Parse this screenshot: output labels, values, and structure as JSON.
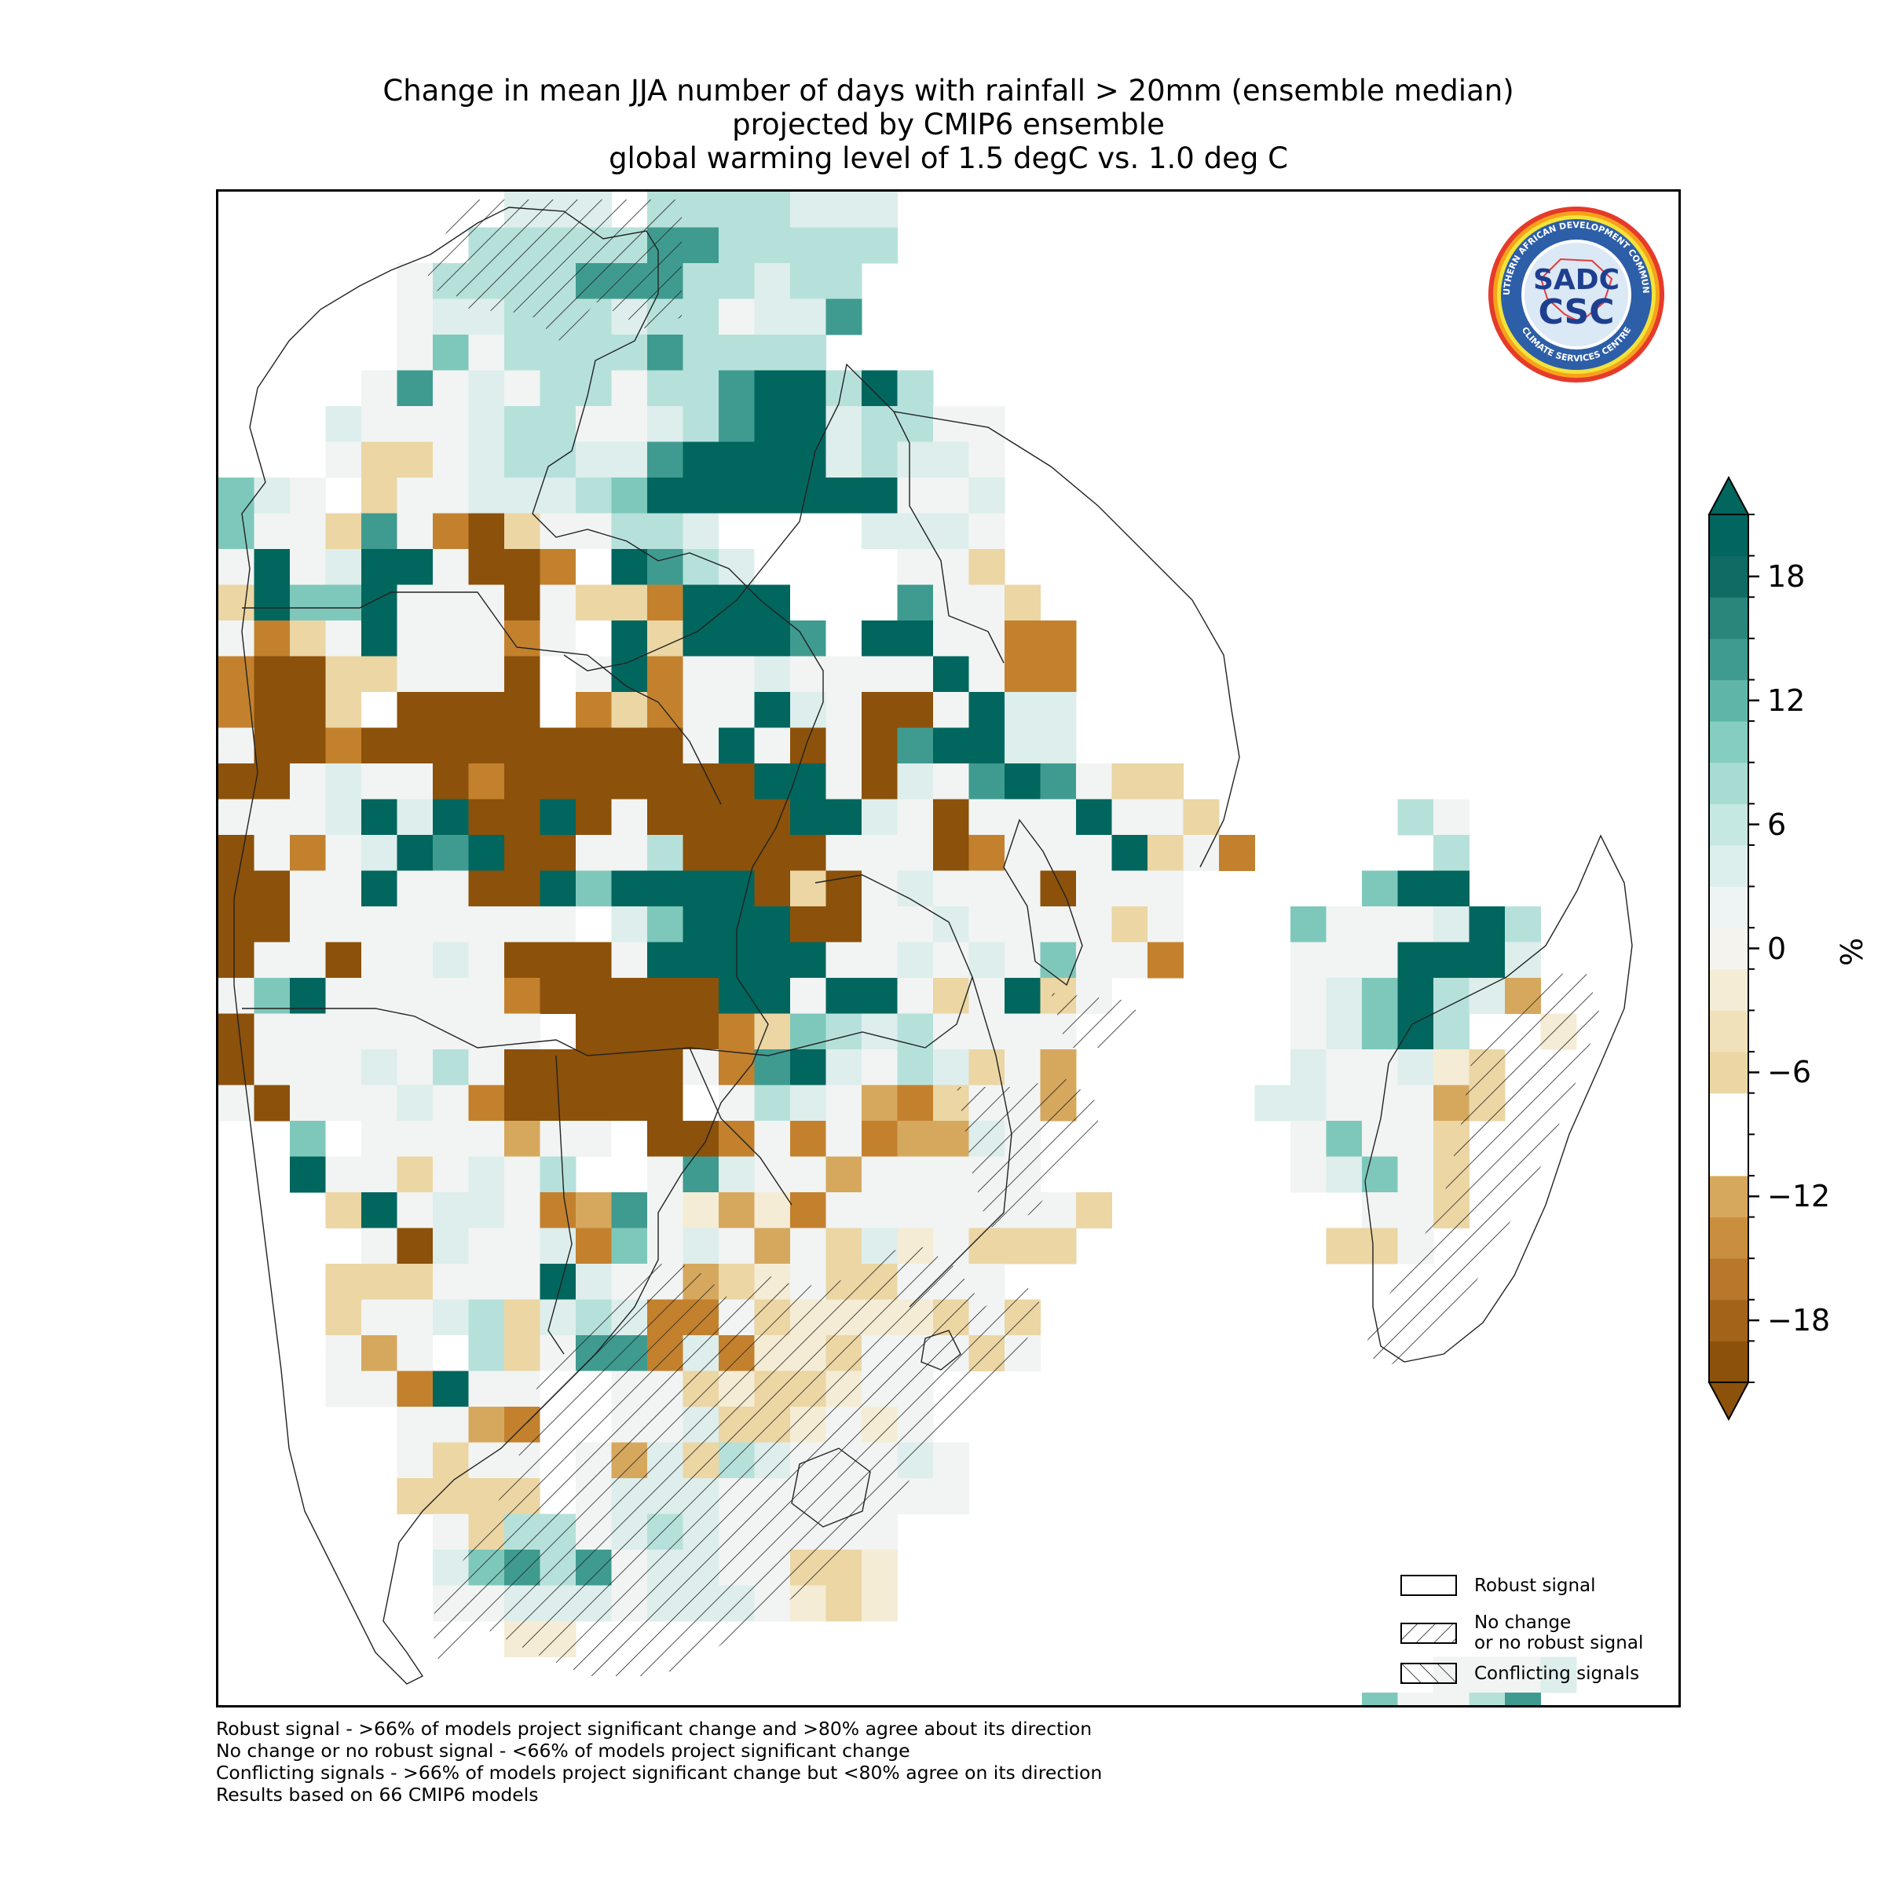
{
  "title": {
    "line1": "Change in mean JJA number of days with rainfall > 20mm (ensemble median)",
    "line2": "projected by CMIP6 ensemble",
    "line3": "global warming level of 1.5 degC vs. 1.0 deg C"
  },
  "logo": {
    "ring_text_top": "SOUTHERN AFRICAN DEVELOPMENT COMMUNITY",
    "ring_text_bottom": "CLIMATE SERVICES CENTRE",
    "center_top": "SADC",
    "center_bottom": "CSC"
  },
  "legend": {
    "items": [
      {
        "label": "Robust signal",
        "pattern": "none"
      },
      {
        "label_line1": "No change",
        "label_line2": "or no robust signal",
        "pattern": "forward-hatch"
      },
      {
        "label": "Conflicting signals",
        "pattern": "back-hatch"
      }
    ]
  },
  "footnotes": {
    "line1": "Robust signal - >66% of models project significant change and >80% agree about its direction",
    "line2": "No change or no robust signal - <66% of models project significant change",
    "line3": "Conflicting signals - >66% of models project significant change but <80% agree on its direction",
    "line4": "Results based on 66 CMIP6 models"
  },
  "colorbar": {
    "unit": "%",
    "min": -21,
    "max": 21,
    "ticks": [
      18,
      12,
      6,
      0,
      -6,
      -12,
      -18
    ],
    "tick_labels": [
      "18",
      "12",
      "6",
      "0",
      "−6",
      "−12",
      "−18"
    ],
    "levels": [
      -21,
      -19,
      -17,
      -15,
      -13,
      -11,
      -9,
      -7,
      -5,
      -3,
      -1,
      1,
      3,
      5,
      7,
      9,
      11,
      13,
      15,
      17,
      19,
      21
    ],
    "colors": [
      "#8c510a",
      "#a3641a",
      "#b9772b",
      "#c98f3f",
      "#d6a85e",
      "#ffffff",
      "#ffffff",
      "#ebd6a4",
      "#f0e1bb",
      "#f5ecd5",
      "#f5f3ee",
      "#eef4f3",
      "#dcefed",
      "#c6e8e2",
      "#a8dcd3",
      "#84cdc0",
      "#5fb6a8",
      "#3f9b90",
      "#2a857b",
      "#0f6b63",
      "#01665e"
    ],
    "extend_low": "#8c510a",
    "extend_high": "#01665e"
  },
  "map_data": {
    "grid_lon0": 10.0,
    "grid_lat0": -3.0,
    "cell_deg": 0.75,
    "palette": {
      "B": "#8c510a",
      "b": "#c3812e",
      "o": "#d6a85e",
      "t": "#ebd6a4",
      "c": "#f5ecd5",
      "n": "#f1f4f3",
      "l": "#ddeeec",
      "m": "#b6e1da",
      "g": "#7ec8bb",
      "G": "#3f9b90",
      "D": "#01665e",
      "w": "#ffffff"
    },
    "rows": [
      "........lll.mmmmlll...........................",
      ".......mmmmmGGmmmmm...........................",
      ".....nmmmmGGGmmlmm............................",
      ".....nllmmmlmmnllG............................",
      ".....ngnmmmmGmmmm.............................",
      "....nGnlnmmnmmGDDmDm..........................",
      "...lnnnlmmnnlmGDDlmmnn........................",
      "...nttnlmmllGDDDDlmlln........................",
      "gln.tnnlllmgDDDDDDDnnl........................",
      "gnntGnbBtnnmmlwwwwllln........................",
      "nDnlDDnBBbwDGmlwwwwnnt........................",
      "tDggDnnnBnttbDDDwwwGnnt.......................",
      "nbtnDnnnbnwDtDDDGwDDnnbb......................",
      "bBBttnnnBwnDbnnlnnnnDnbb......................",
      "bBBtwBBBBwbtbnnDlnBBnDll......................",
      "nBBbBBBBBBBBBnDnBnBGDDll......................",
      "BBnlnnBbBBBBBBBDDnBlnGDGntt...................",
      "nnnlDlDBBDBnBBBBDDlnBnnnDnnt.....mn...........",
      "BnbnlDGDBBnnmBBBBnnnBbnnnDtnb.....m...........",
      "BBnnDnnBBDgDDDDBtBnlnnnBnnn.....gDD...........",
      "BBnnnnnnnnwlgDDDBBnnlnnnntn...gnnnlDm.........",
      "BnnBnnlnBBBnDDDDDnnlnlngnnb...nnnDDDl.........",
      "ngDnnnnnbBBBBBDDnDDntnDtn.....nlgDmlo.........",
      "Bnnnnnnnn.BBBBbtgmlmnnnn......nlgDm..c........",
      "BnnnlnmnBBBBBnbGDlnmltno......lnnlct..........",
      "nBnnnlnbBBBBBwnmlnobtnno.....llnnnot..........",
      "..gwnnnnonnwBBbnbnbooln.......ngnnt...........",
      "..Dnntnlnm..nGlnnonnnnn.......nlgnt...........",
      "...tDnllnboGncocbnnnnnnnt.......nnt...........",
      "....nBlnnlbgnlnontlcnttt.......ttn............",
      "...tttnnnDlnnotcnttnnn........................",
      "...tnnlmtlmlbbntcccctnt.......................",
      "...nonwmtnGGblbcctnnntn.......................",
      "...nnbDnnwwnntcttcnn..........................",
      ".....nnobwwnnlttcncn..........................",
      ".....ntnnwnoltmlnnnln.........................",
      ".....ttttwnlllnnnnnnn.........................",
      "......ntmmnlmlnnnnn...........................",
      "......lgGmGnllnnttc...........................",
      "......nnlllnlllnctc...........................",
      "........cc....................................",
      "..................................nnnl.......",
      "................................gnnmG........"
    ],
    "hatch_note": "Forward hatching marks 'No change or no robust signal' regions; back hatching marks 'Conflicting signals'."
  }
}
